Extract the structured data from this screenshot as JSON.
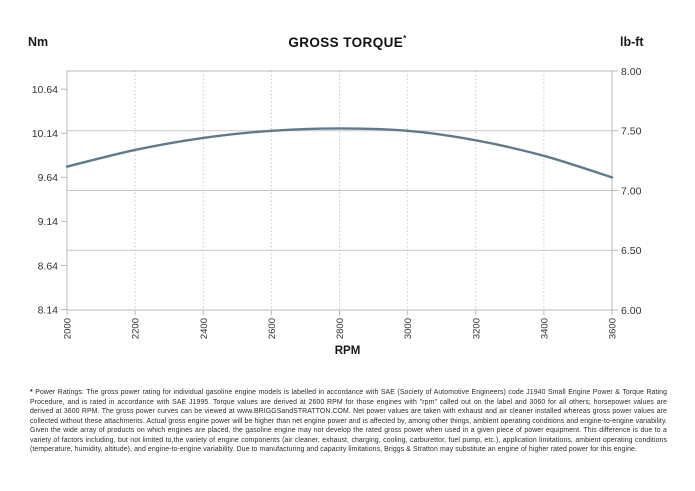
{
  "header": {
    "left_unit": "Nm",
    "title": "GROSS TORQUE",
    "title_sup": "*",
    "right_unit": "lb-ft"
  },
  "chart_data": {
    "type": "line",
    "title": "GROSS TORQUE*",
    "xlabel": "RPM",
    "x": [
      2000,
      2200,
      2400,
      2600,
      2800,
      3000,
      3200,
      3400,
      3600
    ],
    "series": [
      {
        "name": "Gross Torque",
        "values_lbft": [
          7.2,
          7.34,
          7.44,
          7.5,
          7.52,
          7.5,
          7.42,
          7.29,
          7.11
        ],
        "values_Nm": [
          9.76,
          9.95,
          10.09,
          10.17,
          10.2,
          10.17,
          10.06,
          9.88,
          9.64
        ]
      }
    ],
    "x_ticks": [
      "2000",
      "2200",
      "2400",
      "2600",
      "2800",
      "3000",
      "3200",
      "3400",
      "3600"
    ],
    "xlim": [
      2000,
      3600
    ],
    "left_axis": {
      "unit": "Nm",
      "ticks": [
        "10.64",
        "10.14",
        "9.64",
        "9.14",
        "8.64",
        "8.14"
      ]
    },
    "right_axis": {
      "unit": "lb-ft",
      "ticks": [
        "8.00",
        "7.50",
        "7.00",
        "6.50",
        "6.00"
      ],
      "min": 6.0,
      "max": 8.0
    },
    "grid": true,
    "legend": "none",
    "colors": {
      "curve": "#5e7b8b",
      "grid_solid": "#c8c8c8",
      "grid_dotted": "#c6c6c6",
      "border": "#b8b8b8",
      "tick_text": "#333333"
    }
  },
  "footnote": {
    "marker": "*",
    "text": " Power Ratings: The gross power rating for individual gasoline engine models is labelled in accordance with SAE (Society of Automotive Engineers) code J1940 Small Engine Power & Torque Rating Procedure, and is rated in accordance with SAE J1995. Torque values are derived at 2600 RPM for those engines with \"rpm\" called out on the label and 3060 for all others; horsepower values are derived at 3600 RPM. The gross power curves can be viewed at www.BRIGGSandSTRATTON.COM. Net power values are taken with exhaust and air cleaner installed whereas gross power values are collected without these attachments. Actual gross engine power will be higher than net engine power and is affected by, among other things, ambient operating conditions and engine-to-engine variability. Given the wide array of products on which engines are placed, the gasoline engine may not develop the rated gross power when used in a given piece of power equipment. This difference is due to a variety of factors including, but not limited to,the variety of engine components (air cleaner, exhaust, charging, cooling, carburettor, fuel pump, etc.), application limitations, ambient operating conditions (temperature, humidity, altitude), and engine-to-engine variability. Due to manufacturing and capacity limitations, Briggs & Stratton may substitute an engine of higher rated power for this engine."
  }
}
